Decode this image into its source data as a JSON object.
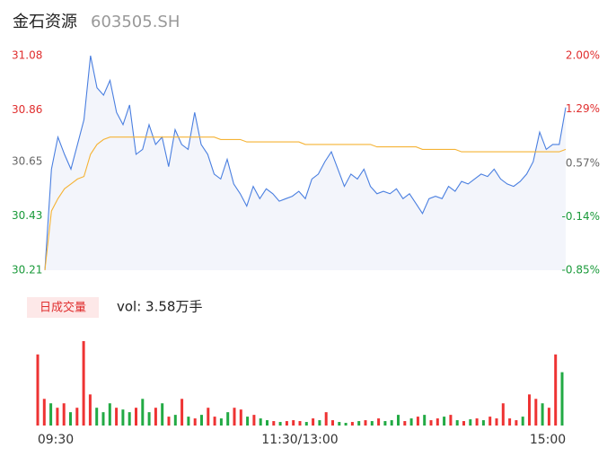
{
  "header": {
    "title": "金石资源",
    "code": "603505.SH"
  },
  "chart_data": [
    {
      "type": "line",
      "xlim": [
        0,
        240
      ],
      "x": [
        0,
        3,
        6,
        9,
        12,
        15,
        18,
        21,
        24,
        27,
        30,
        33,
        36,
        39,
        42,
        45,
        48,
        51,
        54,
        57,
        60,
        63,
        66,
        69,
        72,
        75,
        78,
        81,
        84,
        87,
        90,
        93,
        96,
        99,
        102,
        105,
        108,
        111,
        114,
        117,
        120,
        123,
        126,
        129,
        132,
        135,
        138,
        141,
        144,
        147,
        150,
        153,
        156,
        159,
        162,
        165,
        168,
        171,
        174,
        177,
        180,
        183,
        186,
        189,
        192,
        195,
        198,
        201,
        204,
        207,
        210,
        213,
        216,
        219,
        222,
        225,
        228,
        231,
        234,
        237,
        240
      ],
      "series": [
        {
          "color": "#4a7fe0",
          "fill": "#f3f5fb",
          "values": [
            30.21,
            30.62,
            30.75,
            30.68,
            30.62,
            30.72,
            30.82,
            31.08,
            30.95,
            30.92,
            30.98,
            30.85,
            30.8,
            30.88,
            30.68,
            30.7,
            30.8,
            30.72,
            30.75,
            30.63,
            30.78,
            30.72,
            30.7,
            30.85,
            30.72,
            30.68,
            30.6,
            30.58,
            30.66,
            30.56,
            30.52,
            30.47,
            30.55,
            30.5,
            30.54,
            30.52,
            30.49,
            30.5,
            30.51,
            30.53,
            30.5,
            30.58,
            30.6,
            30.65,
            30.69,
            30.62,
            30.55,
            30.6,
            30.58,
            30.62,
            30.55,
            30.52,
            30.53,
            30.52,
            30.54,
            30.5,
            30.52,
            30.48,
            30.44,
            30.5,
            30.51,
            30.5,
            30.55,
            30.53,
            30.57,
            30.56,
            30.58,
            30.6,
            30.59,
            30.62,
            30.58,
            30.56,
            30.55,
            30.57,
            30.6,
            30.65,
            30.77,
            30.7,
            30.72,
            30.72,
            30.87
          ]
        },
        {
          "color": "#f5b335",
          "values": [
            30.21,
            30.45,
            30.5,
            30.54,
            30.56,
            30.58,
            30.59,
            30.68,
            30.72,
            30.74,
            30.75,
            30.75,
            30.75,
            30.75,
            30.75,
            30.75,
            30.75,
            30.75,
            30.75,
            30.75,
            30.75,
            30.75,
            30.75,
            30.75,
            30.75,
            30.75,
            30.75,
            30.74,
            30.74,
            30.74,
            30.74,
            30.73,
            30.73,
            30.73,
            30.73,
            30.73,
            30.73,
            30.73,
            30.73,
            30.73,
            30.72,
            30.72,
            30.72,
            30.72,
            30.72,
            30.72,
            30.72,
            30.72,
            30.72,
            30.72,
            30.72,
            30.71,
            30.71,
            30.71,
            30.71,
            30.71,
            30.71,
            30.71,
            30.7,
            30.7,
            30.7,
            30.7,
            30.7,
            30.7,
            30.69,
            30.69,
            30.69,
            30.69,
            30.69,
            30.69,
            30.69,
            30.69,
            30.69,
            30.69,
            30.69,
            30.69,
            30.69,
            30.69,
            30.69,
            30.69,
            30.7
          ]
        }
      ],
      "ylim": [
        30.21,
        31.08
      ],
      "yticks": [
        30.21,
        30.43,
        30.65,
        30.86,
        31.08
      ],
      "ytick_colors": [
        "#1a9a3a",
        "#1a9a3a",
        "#666666",
        "#e02e2e",
        "#e02e2e"
      ],
      "y2lim": [
        -0.85,
        2.0
      ],
      "y2ticks": [
        {
          "value": -0.85,
          "label": "-0.85%"
        },
        {
          "value": -0.14,
          "label": "-0.14%"
        },
        {
          "value": 0.57,
          "label": "0.57%"
        },
        {
          "value": 1.29,
          "label": "1.29%"
        },
        {
          "value": 2.0,
          "label": "2.00%"
        }
      ],
      "y2tick_colors": [
        "#1a9a3a",
        "#1a9a3a",
        "#666666",
        "#e02e2e",
        "#e02e2e"
      ],
      "grid": false
    },
    {
      "type": "bar",
      "title": "日成交量",
      "subtitle": "vol: 3.58万手",
      "xlim": [
        0,
        240
      ],
      "x": [
        0,
        3,
        6,
        9,
        12,
        15,
        18,
        21,
        24,
        27,
        30,
        33,
        36,
        39,
        42,
        45,
        48,
        51,
        54,
        57,
        60,
        63,
        66,
        69,
        72,
        75,
        78,
        81,
        84,
        87,
        90,
        93,
        96,
        99,
        102,
        105,
        108,
        111,
        114,
        117,
        120,
        123,
        126,
        129,
        132,
        135,
        138,
        141,
        144,
        147,
        150,
        153,
        156,
        159,
        162,
        165,
        168,
        171,
        174,
        177,
        180,
        183,
        186,
        189,
        192,
        195,
        198,
        201,
        204,
        207,
        210,
        213,
        216,
        219,
        222,
        225,
        228,
        231,
        234,
        237,
        240
      ],
      "xticks": [
        {
          "value": 0,
          "label": "09:30"
        },
        {
          "value": 120,
          "label": "11:30/13:00"
        },
        {
          "value": 240,
          "label": "15:00"
        }
      ],
      "ylim": [
        0,
        100
      ],
      "values": [
        80,
        30,
        25,
        20,
        25,
        15,
        20,
        95,
        35,
        20,
        15,
        25,
        20,
        18,
        15,
        20,
        30,
        15,
        20,
        25,
        10,
        12,
        30,
        10,
        8,
        12,
        20,
        10,
        8,
        15,
        20,
        18,
        10,
        12,
        8,
        6,
        5,
        4,
        5,
        6,
        5,
        4,
        8,
        6,
        15,
        6,
        4,
        3,
        4,
        5,
        6,
        5,
        8,
        5,
        6,
        12,
        5,
        8,
        10,
        12,
        6,
        8,
        10,
        12,
        6,
        5,
        7,
        8,
        6,
        10,
        8,
        25,
        8,
        6,
        10,
        35,
        30,
        25,
        20,
        80,
        60
      ],
      "colors": [
        "#e33",
        "#e33",
        "#2a4",
        "#e33",
        "#e33",
        "#2a4",
        "#e33",
        "#e33",
        "#e33",
        "#2a4",
        "#2a4",
        "#2a4",
        "#e33",
        "#2a4",
        "#2a4",
        "#e33",
        "#2a4",
        "#2a4",
        "#e33",
        "#2a4",
        "#e33",
        "#2a4",
        "#e33",
        "#2a4",
        "#e33",
        "#2a4",
        "#e33",
        "#e33",
        "#2a4",
        "#2a4",
        "#e33",
        "#e33",
        "#2a4",
        "#e33",
        "#2a4",
        "#2a4",
        "#e33",
        "#2a4",
        "#e33",
        "#e33",
        "#e33",
        "#2a4",
        "#e33",
        "#2a4",
        "#e33",
        "#e33",
        "#2a4",
        "#2a4",
        "#e33",
        "#2a4",
        "#e33",
        "#2a4",
        "#e33",
        "#2a4",
        "#2a4",
        "#2a4",
        "#e33",
        "#2a4",
        "#e33",
        "#2a4",
        "#e33",
        "#e33",
        "#2a4",
        "#e33",
        "#2a4",
        "#e33",
        "#2a4",
        "#e33",
        "#2a4",
        "#e33",
        "#e33",
        "#e33",
        "#e33",
        "#e33",
        "#2a4",
        "#e33",
        "#e33",
        "#2a4",
        "#e33",
        "#e33",
        "#2a4"
      ]
    }
  ]
}
